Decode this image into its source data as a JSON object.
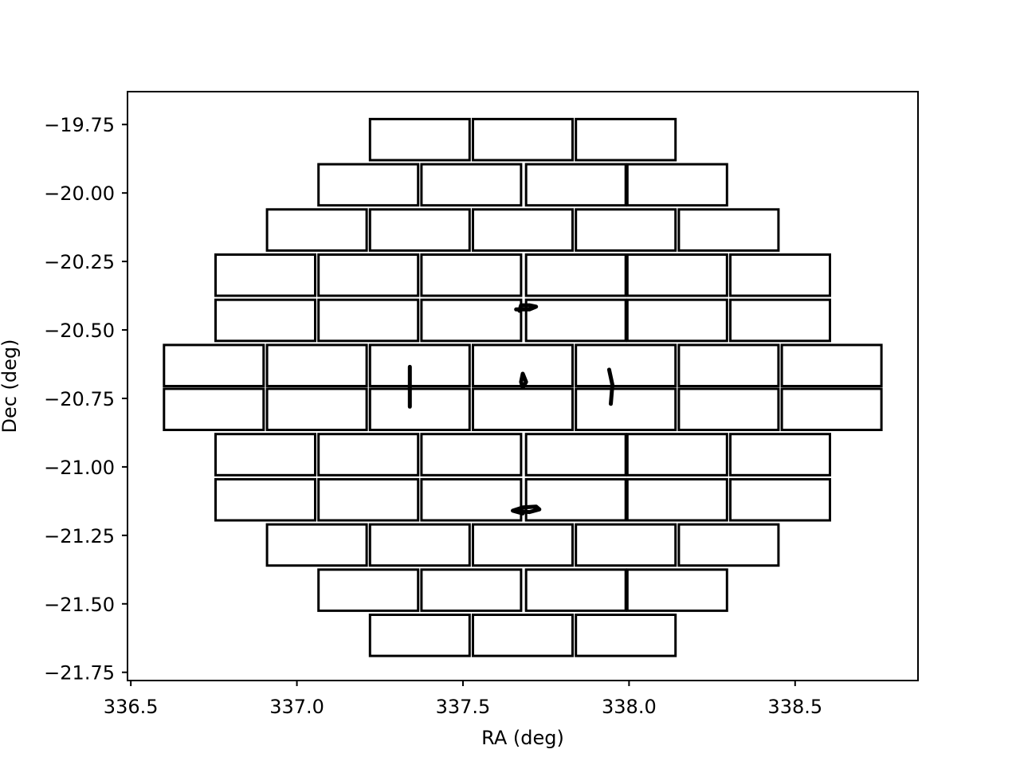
{
  "chart_data": {
    "type": "scatter",
    "description_kind": "focal-plane CCD footprint",
    "title": "",
    "xlabel": "RA  (deg)",
    "ylabel": "Dec (deg)",
    "xlim": [
      336.49,
      338.87
    ],
    "ylim": [
      -21.78,
      -19.63
    ],
    "xticks": [
      336.5,
      337.0,
      337.5,
      338.0,
      338.5
    ],
    "xtick_labels": [
      "336.5",
      "337.0",
      "337.5",
      "338.0",
      "338.5"
    ],
    "yticks": [
      -19.75,
      -20.0,
      -20.25,
      -20.5,
      -20.75,
      -21.0,
      -21.25,
      -21.5,
      -21.75
    ],
    "ytick_labels": [
      "−19.75",
      "−20.00",
      "−20.25",
      "−20.50",
      "−20.75",
      "−21.00",
      "−21.25",
      "−21.50",
      "−21.75"
    ],
    "grid": false,
    "ccd_width_ra": 0.3,
    "rows": [
      {
        "dec_top": -19.73,
        "dec_bottom": -19.88,
        "ra_left": [
          337.22,
          337.53,
          337.84
        ]
      },
      {
        "dec_top": -19.895,
        "dec_bottom": -20.045,
        "ra_left": [
          337.065,
          337.375,
          337.69,
          337.995
        ]
      },
      {
        "dec_top": -20.06,
        "dec_bottom": -20.21,
        "ra_left": [
          336.91,
          337.22,
          337.53,
          337.84,
          338.15
        ]
      },
      {
        "dec_top": -20.225,
        "dec_bottom": -20.375,
        "ra_left": [
          336.755,
          337.065,
          337.375,
          337.69,
          337.995,
          338.305
        ]
      },
      {
        "dec_top": -20.39,
        "dec_bottom": -20.54,
        "ra_left": [
          336.755,
          337.065,
          337.375,
          337.69,
          337.995,
          338.305
        ]
      },
      {
        "dec_top": -20.555,
        "dec_bottom": -20.705,
        "ra_left": [
          336.6,
          336.91,
          337.22,
          337.53,
          337.84,
          338.15,
          338.46
        ]
      },
      {
        "dec_top": -20.715,
        "dec_bottom": -20.865,
        "ra_left": [
          336.6,
          336.91,
          337.22,
          337.53,
          337.84,
          338.15,
          338.46
        ]
      },
      {
        "dec_top": -20.88,
        "dec_bottom": -21.03,
        "ra_left": [
          336.755,
          337.065,
          337.375,
          337.69,
          337.995,
          338.305
        ]
      },
      {
        "dec_top": -21.045,
        "dec_bottom": -21.195,
        "ra_left": [
          336.755,
          337.065,
          337.375,
          337.69,
          337.995,
          338.305
        ]
      },
      {
        "dec_top": -21.21,
        "dec_bottom": -21.36,
        "ra_left": [
          336.91,
          337.22,
          337.53,
          337.84,
          338.15
        ]
      },
      {
        "dec_top": -21.375,
        "dec_bottom": -21.525,
        "ra_left": [
          337.065,
          337.375,
          337.69,
          337.995
        ]
      },
      {
        "dec_top": -21.54,
        "dec_bottom": -21.69,
        "ra_left": [
          337.22,
          337.53,
          337.84
        ]
      }
    ],
    "marks": [
      {
        "name": "focus-chip-top",
        "points": [
          [
            337.66,
            -20.425
          ],
          [
            337.7,
            -20.425
          ],
          [
            337.72,
            -20.415
          ],
          [
            337.7,
            -20.41
          ],
          [
            337.675,
            -20.41
          ],
          [
            337.67,
            -20.43
          ]
        ]
      },
      {
        "name": "focus-chip-bottom",
        "points": [
          [
            337.66,
            -21.16
          ],
          [
            337.7,
            -21.165
          ],
          [
            337.73,
            -21.155
          ],
          [
            337.72,
            -21.145
          ],
          [
            337.68,
            -21.148
          ],
          [
            337.65,
            -21.16
          ],
          [
            337.68,
            -21.17
          ]
        ]
      },
      {
        "name": "guide-chip-left",
        "points": [
          [
            337.34,
            -20.635
          ],
          [
            337.34,
            -20.78
          ]
        ]
      },
      {
        "name": "guide-chip-right",
        "points": [
          [
            337.94,
            -20.645
          ],
          [
            337.95,
            -20.7
          ],
          [
            337.945,
            -20.77
          ]
        ]
      },
      {
        "name": "center-dot",
        "points": [
          [
            337.68,
            -20.66
          ],
          [
            337.69,
            -20.69
          ],
          [
            337.68,
            -20.71
          ],
          [
            337.675,
            -20.69
          ],
          [
            337.68,
            -20.66
          ]
        ]
      }
    ]
  }
}
